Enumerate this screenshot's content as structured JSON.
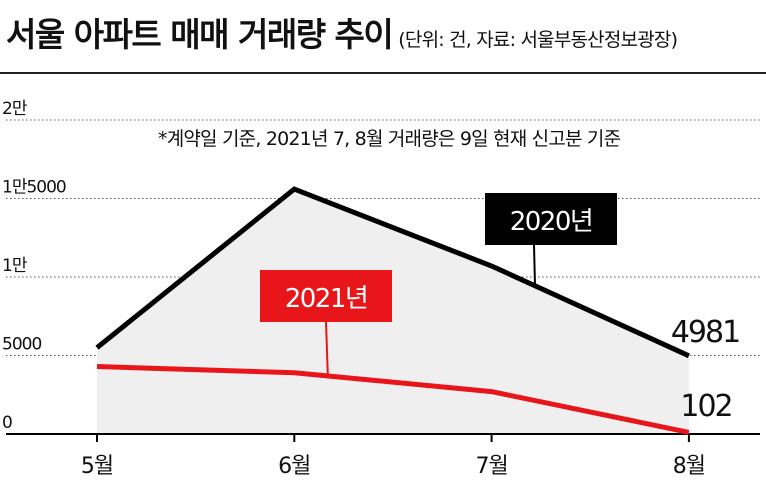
{
  "title": "서울 아파트 매매 거래량 추이",
  "subtitle": "(단위: 건, 자료: 서울부동산정보광장)",
  "chart_data": {
    "type": "line",
    "title": "서울 아파트 매매 거래량 추이",
    "unit": "건",
    "source": "서울부동산정보광장",
    "note": "*계약일 기준, 2021년 7, 8월 거래량은 9일 현재 신고분 기준",
    "categories": [
      "5월",
      "6월",
      "7월",
      "8월"
    ],
    "y_ticks": [
      {
        "value": 0,
        "label": "0"
      },
      {
        "value": 5000,
        "label": "5000"
      },
      {
        "value": 10000,
        "label": "1만"
      },
      {
        "value": 15000,
        "label": "1만5000"
      },
      {
        "value": 20000,
        "label": "2만"
      }
    ],
    "ylim": [
      0,
      20000
    ],
    "grid": true,
    "series": [
      {
        "name": "2020년",
        "color": "#000000",
        "fill": "#efefef",
        "values": [
          5500,
          15600,
          10700,
          4981
        ],
        "end_label": "4981"
      },
      {
        "name": "2021년",
        "color": "#e8161b",
        "values": [
          4300,
          3900,
          2700,
          102
        ],
        "end_label": "102"
      }
    ]
  }
}
